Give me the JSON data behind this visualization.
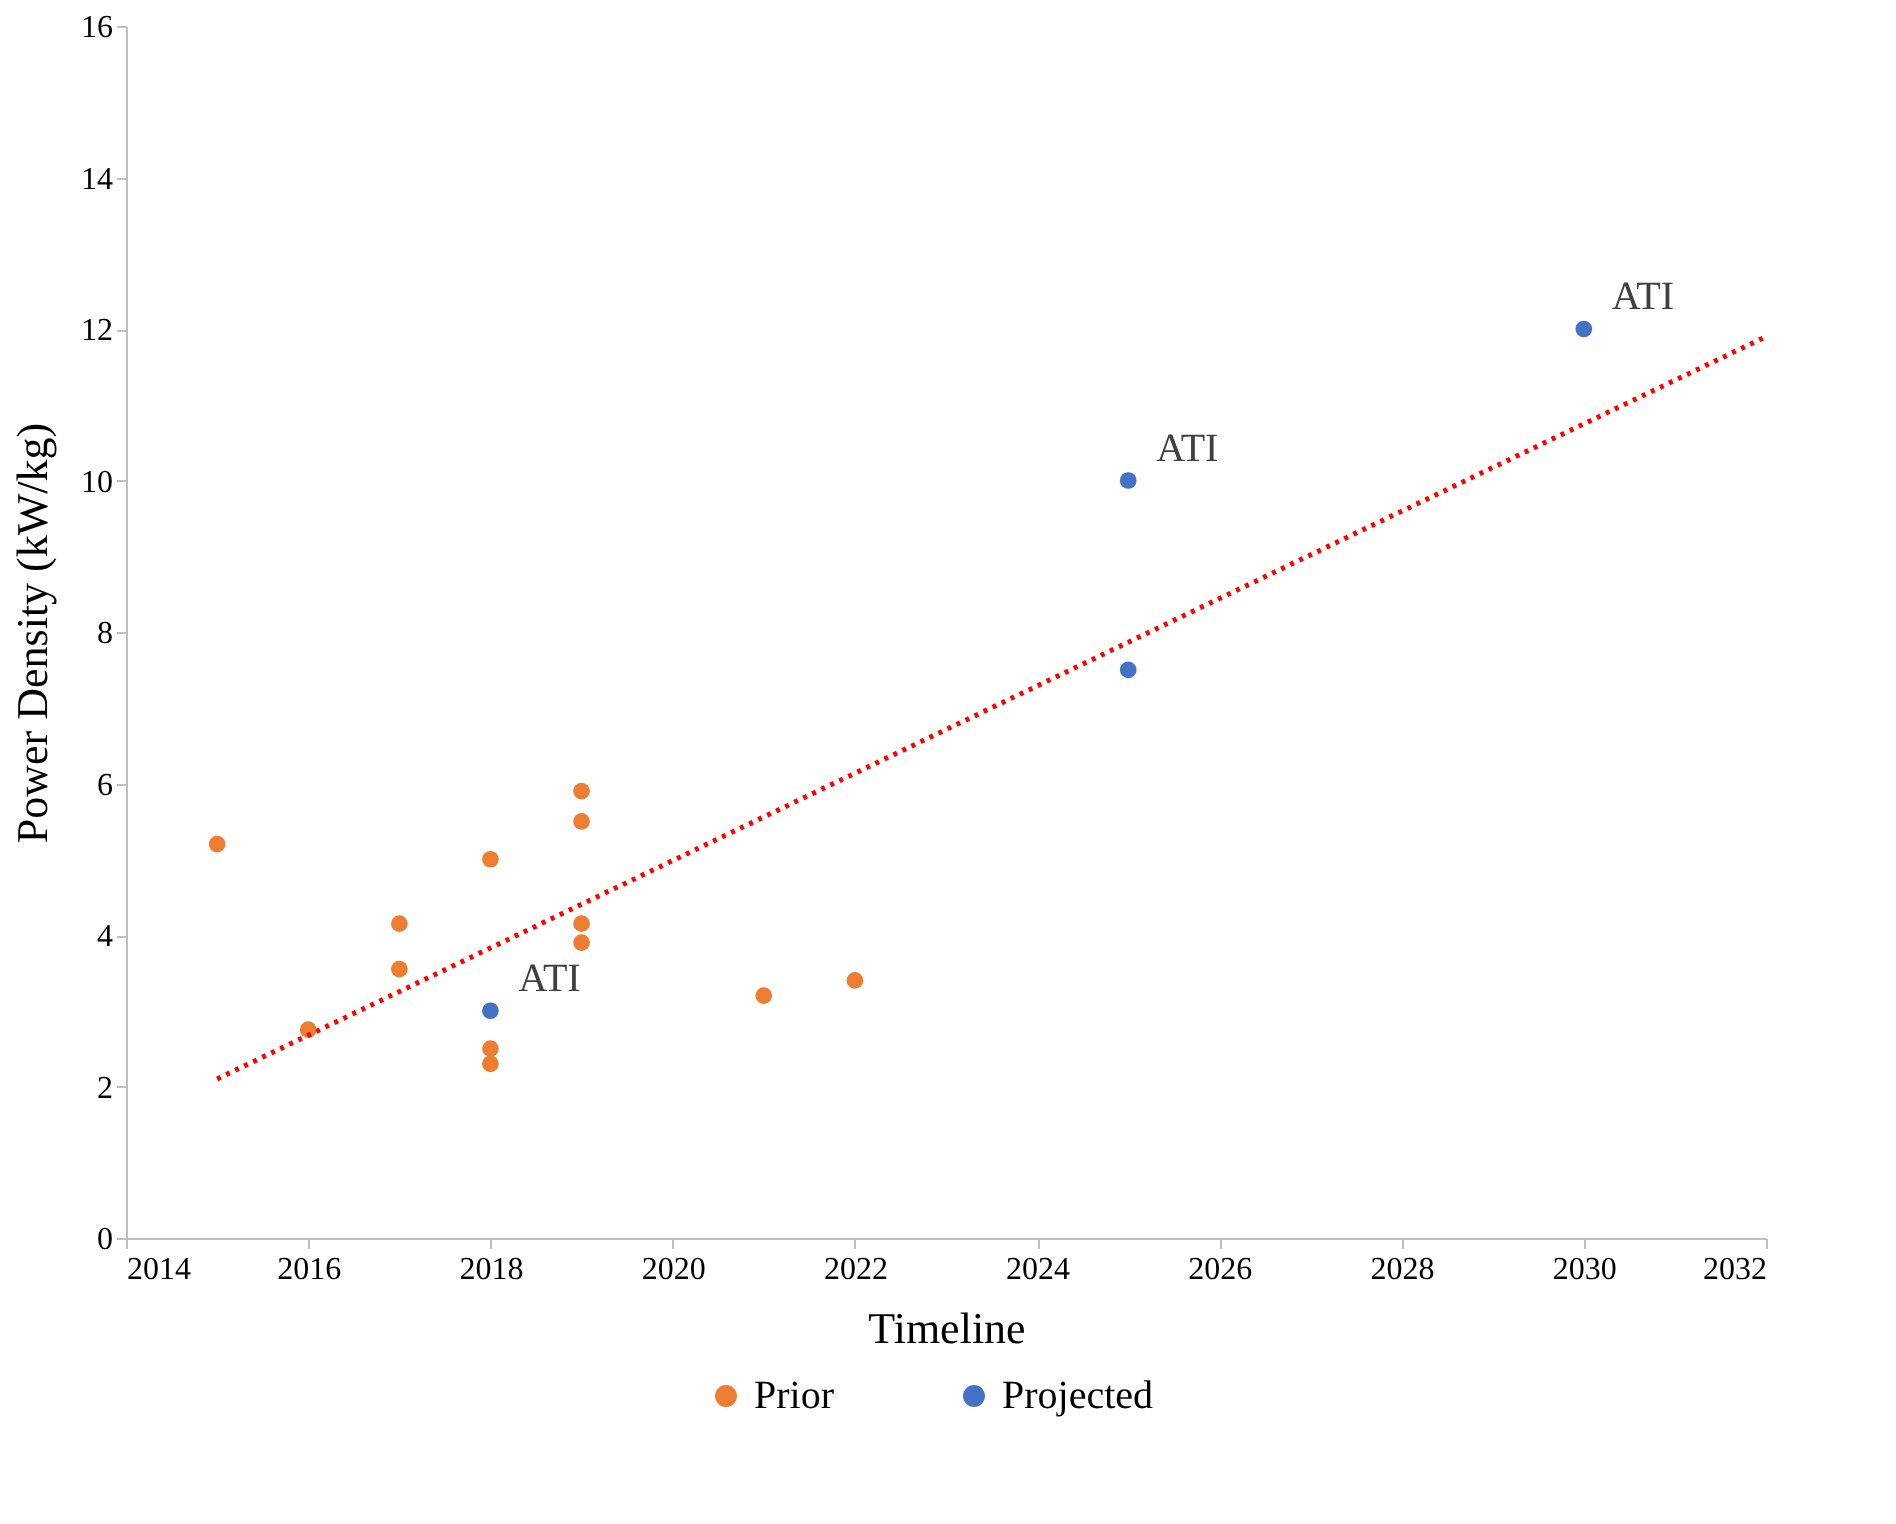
{
  "chart_data": {
    "type": "scatter",
    "xlabel": "Timeline",
    "ylabel": "Power Density (kW/kg)",
    "xlim": [
      2014,
      2032
    ],
    "xticks": [
      2014,
      2016,
      2018,
      2020,
      2022,
      2024,
      2026,
      2028,
      2030,
      2032
    ],
    "ylim": [
      0,
      16
    ],
    "yticks": [
      0,
      2,
      4,
      6,
      8,
      10,
      12,
      14,
      16
    ],
    "grid": false,
    "legend": "bottom",
    "marker": "circle",
    "series": [
      {
        "name": "Prior",
        "color": "#ed7d31",
        "x": [
          2015,
          2016,
          2017,
          2017,
          2018,
          2018,
          2018,
          2019,
          2019,
          2019,
          2019,
          2021,
          2022
        ],
        "values": [
          5.2,
          2.75,
          4.15,
          3.55,
          5.0,
          2.5,
          2.3,
          5.9,
          5.5,
          4.15,
          3.9,
          3.2,
          3.4
        ]
      },
      {
        "name": "Projected",
        "color": "#4472c4",
        "x": [
          2018,
          2025,
          2025,
          2030
        ],
        "values": [
          3.0,
          10.0,
          7.5,
          12.0
        ]
      },
      {
        "type": "line",
        "marker": "none",
        "line_style": "dotted",
        "color": "#ff0000",
        "x": [
          2015,
          2032
        ],
        "values": [
          2.1,
          11.9
        ]
      }
    ],
    "annotations": [
      {
        "text": "ATI",
        "x": 2018,
        "y": 3.0
      },
      {
        "text": "ATI",
        "x": 2025,
        "y": 10.0
      },
      {
        "text": "ATI",
        "x": 2030,
        "y": 12.0
      }
    ]
  }
}
